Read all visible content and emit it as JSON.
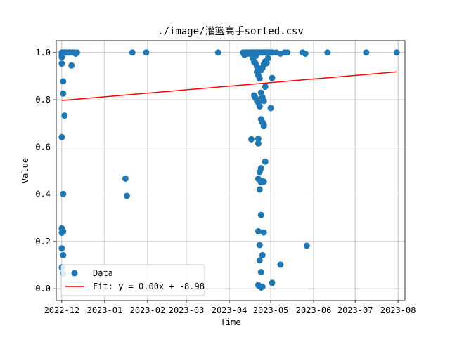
{
  "chart_data": {
    "type": "scatter",
    "title": "./image/灌篮高手sorted.csv",
    "xlabel": "Time",
    "ylabel": "Value",
    "x_ticks": [
      "2022-12",
      "2023-01",
      "2023-02",
      "2023-03",
      "2023-04",
      "2023-05",
      "2023-06",
      "2023-07",
      "2023-08"
    ],
    "y_ticks": [
      "0.0",
      "0.2",
      "0.4",
      "0.6",
      "0.8",
      "1.0"
    ],
    "xlim": [
      "2022-11-27",
      "2023-08-06"
    ],
    "ylim": [
      -0.05,
      1.05
    ],
    "grid": true,
    "legend_position": "lower-left",
    "legend": {
      "data_label": "Data",
      "fit_label": "Fit: y = 0.00x + -8.98"
    },
    "colors": {
      "data": "#1f77b4",
      "fit": "#ff0000"
    },
    "fit_line": {
      "x": [
        "2022-12-01",
        "2023-07-31"
      ],
      "y": [
        0.797,
        0.918
      ]
    },
    "series": [
      {
        "name": "Data",
        "points": [
          {
            "x": "2022-12-01",
            "y": 1.0
          },
          {
            "x": "2022-12-01",
            "y": 0.99
          },
          {
            "x": "2022-12-01",
            "y": 0.98
          },
          {
            "x": "2022-12-01",
            "y": 0.953
          },
          {
            "x": "2022-12-02",
            "y": 0.878
          },
          {
            "x": "2022-12-02",
            "y": 0.826
          },
          {
            "x": "2022-12-03",
            "y": 0.733
          },
          {
            "x": "2022-12-01",
            "y": 0.642
          },
          {
            "x": "2022-12-02",
            "y": 0.401
          },
          {
            "x": "2022-12-01",
            "y": 0.255
          },
          {
            "x": "2022-12-02",
            "y": 0.242
          },
          {
            "x": "2022-12-01",
            "y": 0.237
          },
          {
            "x": "2022-12-01",
            "y": 0.171
          },
          {
            "x": "2022-12-02",
            "y": 0.142
          },
          {
            "x": "2022-12-01",
            "y": 0.09
          },
          {
            "x": "2022-12-02",
            "y": 0.064
          },
          {
            "x": "2022-12-02",
            "y": 1.0
          },
          {
            "x": "2022-12-03",
            "y": 1.0
          },
          {
            "x": "2022-12-04",
            "y": 1.0
          },
          {
            "x": "2022-12-05",
            "y": 1.0
          },
          {
            "x": "2022-12-06",
            "y": 1.0
          },
          {
            "x": "2022-12-07",
            "y": 1.0
          },
          {
            "x": "2022-12-09",
            "y": 1.0
          },
          {
            "x": "2022-12-10",
            "y": 1.0
          },
          {
            "x": "2022-12-11",
            "y": 0.995
          },
          {
            "x": "2022-12-12",
            "y": 1.0
          },
          {
            "x": "2022-12-08",
            "y": 0.945
          },
          {
            "x": "2023-01-16",
            "y": 0.466
          },
          {
            "x": "2023-01-17",
            "y": 0.393
          },
          {
            "x": "2023-01-21",
            "y": 1.0
          },
          {
            "x": "2023-01-31",
            "y": 1.0
          },
          {
            "x": "2023-03-24",
            "y": 1.0
          },
          {
            "x": "2023-04-11",
            "y": 1.0
          },
          {
            "x": "2023-04-12",
            "y": 0.99
          },
          {
            "x": "2023-04-13",
            "y": 1.0
          },
          {
            "x": "2023-04-14",
            "y": 1.0
          },
          {
            "x": "2023-04-15",
            "y": 0.995
          },
          {
            "x": "2023-04-16",
            "y": 1.0
          },
          {
            "x": "2023-04-17",
            "y": 1.0
          },
          {
            "x": "2023-04-18",
            "y": 1.0
          },
          {
            "x": "2023-04-19",
            "y": 1.0
          },
          {
            "x": "2023-04-20",
            "y": 1.0
          },
          {
            "x": "2023-04-21",
            "y": 1.0
          },
          {
            "x": "2023-04-22",
            "y": 1.0
          },
          {
            "x": "2023-04-23",
            "y": 1.0
          },
          {
            "x": "2023-04-24",
            "y": 1.0
          },
          {
            "x": "2023-04-25",
            "y": 1.0
          },
          {
            "x": "2023-04-26",
            "y": 1.0
          },
          {
            "x": "2023-04-27",
            "y": 1.0
          },
          {
            "x": "2023-04-28",
            "y": 1.0
          },
          {
            "x": "2023-04-29",
            "y": 1.0
          },
          {
            "x": "2023-04-30",
            "y": 1.0
          },
          {
            "x": "2023-05-01",
            "y": 1.0
          },
          {
            "x": "2023-05-02",
            "y": 1.0
          },
          {
            "x": "2023-05-05",
            "y": 1.0
          },
          {
            "x": "2023-05-08",
            "y": 0.995
          },
          {
            "x": "2023-05-11",
            "y": 1.0
          },
          {
            "x": "2023-05-13",
            "y": 1.0
          },
          {
            "x": "2023-05-24",
            "y": 1.0
          },
          {
            "x": "2023-05-26",
            "y": 0.995
          },
          {
            "x": "2023-06-11",
            "y": 1.0
          },
          {
            "x": "2023-07-09",
            "y": 1.0
          },
          {
            "x": "2023-07-31",
            "y": 1.0
          },
          {
            "x": "2023-04-18",
            "y": 0.975
          },
          {
            "x": "2023-04-19",
            "y": 0.96
          },
          {
            "x": "2023-04-20",
            "y": 0.955
          },
          {
            "x": "2023-04-21",
            "y": 0.94
          },
          {
            "x": "2023-04-21",
            "y": 0.918
          },
          {
            "x": "2023-04-22",
            "y": 0.903
          },
          {
            "x": "2023-04-23",
            "y": 0.89
          },
          {
            "x": "2023-04-24",
            "y": 0.925
          },
          {
            "x": "2023-04-25",
            "y": 0.935
          },
          {
            "x": "2023-04-26",
            "y": 0.95
          },
          {
            "x": "2023-04-27",
            "y": 0.962
          },
          {
            "x": "2023-04-28",
            "y": 0.955
          },
          {
            "x": "2023-04-29",
            "y": 0.975
          },
          {
            "x": "2023-04-20",
            "y": 0.985
          },
          {
            "x": "2023-04-19",
            "y": 0.818
          },
          {
            "x": "2023-04-20",
            "y": 0.808
          },
          {
            "x": "2023-04-21",
            "y": 0.798
          },
          {
            "x": "2023-04-22",
            "y": 0.788
          },
          {
            "x": "2023-04-23",
            "y": 0.772
          },
          {
            "x": "2023-04-24",
            "y": 0.83
          },
          {
            "x": "2023-04-25",
            "y": 0.81
          },
          {
            "x": "2023-04-26",
            "y": 0.795
          },
          {
            "x": "2023-04-27",
            "y": 0.855
          },
          {
            "x": "2023-05-01",
            "y": 0.765
          },
          {
            "x": "2023-05-02",
            "y": 0.892
          },
          {
            "x": "2023-04-24",
            "y": 0.718
          },
          {
            "x": "2023-04-25",
            "y": 0.705
          },
          {
            "x": "2023-04-26",
            "y": 0.695
          },
          {
            "x": "2023-04-26",
            "y": 0.688
          },
          {
            "x": "2023-04-17",
            "y": 0.633
          },
          {
            "x": "2023-04-22",
            "y": 0.635
          },
          {
            "x": "2023-04-22",
            "y": 0.615
          },
          {
            "x": "2023-04-27",
            "y": 0.538
          },
          {
            "x": "2023-04-24",
            "y": 0.51
          },
          {
            "x": "2023-04-23",
            "y": 0.494
          },
          {
            "x": "2023-04-22",
            "y": 0.465
          },
          {
            "x": "2023-04-25",
            "y": 0.455
          },
          {
            "x": "2023-04-26",
            "y": 0.453
          },
          {
            "x": "2023-04-24",
            "y": 0.45
          },
          {
            "x": "2023-04-23",
            "y": 0.42
          },
          {
            "x": "2023-04-24",
            "y": 0.312
          },
          {
            "x": "2023-04-22",
            "y": 0.243
          },
          {
            "x": "2023-04-26",
            "y": 0.238
          },
          {
            "x": "2023-04-23",
            "y": 0.185
          },
          {
            "x": "2023-04-25",
            "y": 0.142
          },
          {
            "x": "2023-04-23",
            "y": 0.12
          },
          {
            "x": "2023-04-24",
            "y": 0.07
          },
          {
            "x": "2023-04-22",
            "y": 0.015
          },
          {
            "x": "2023-04-23",
            "y": 0.01
          },
          {
            "x": "2023-04-24",
            "y": 0.005
          },
          {
            "x": "2023-04-25",
            "y": 0.008
          },
          {
            "x": "2023-05-02",
            "y": 0.025
          },
          {
            "x": "2023-05-08",
            "y": 0.102
          },
          {
            "x": "2023-05-27",
            "y": 0.182
          }
        ]
      }
    ]
  }
}
